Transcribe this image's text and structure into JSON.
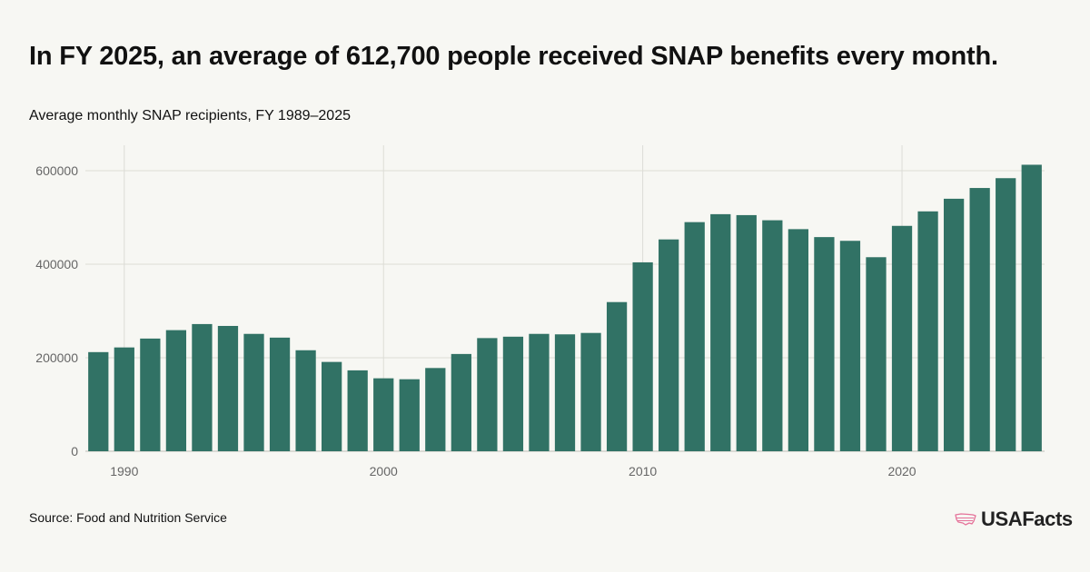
{
  "header": {
    "title": "In FY 2025, an average of 612,700 people received SNAP benefits every month.",
    "subtitle": "Average monthly SNAP recipients, FY 1989–2025"
  },
  "footer": {
    "source": "Source: Food and Nutrition Service",
    "logo_text": "USAFacts",
    "logo_icon": "us-map-icon"
  },
  "colors": {
    "bar": "#317265",
    "background": "#f7f7f3",
    "grid": "#dcdcd6",
    "axis_text": "#666666",
    "logo_accent": "#e5739a"
  },
  "chart_data": {
    "type": "bar",
    "title": "Average monthly SNAP recipients, FY 1989–2025",
    "xlabel": "",
    "ylabel": "",
    "categories": [
      1989,
      1990,
      1991,
      1992,
      1993,
      1994,
      1995,
      1996,
      1997,
      1998,
      1999,
      2000,
      2001,
      2002,
      2003,
      2004,
      2005,
      2006,
      2007,
      2008,
      2009,
      2010,
      2011,
      2012,
      2013,
      2014,
      2015,
      2016,
      2017,
      2018,
      2019,
      2020,
      2021,
      2022,
      2023,
      2024,
      2025
    ],
    "values": [
      212000,
      222000,
      241000,
      259000,
      272000,
      268000,
      251000,
      243000,
      216000,
      191000,
      173000,
      156000,
      154000,
      178000,
      208000,
      242000,
      245000,
      251000,
      250000,
      253000,
      319000,
      404000,
      453000,
      490000,
      507000,
      505000,
      494000,
      475000,
      458000,
      450000,
      415000,
      482000,
      513000,
      540000,
      563000,
      584000,
      612700
    ],
    "x_ticks": [
      "1990",
      "2000",
      "2010",
      "2020"
    ],
    "y_ticks": [
      "0",
      "200000",
      "400000",
      "600000"
    ],
    "ylim": [
      0,
      640000
    ],
    "grid": true,
    "legend": "none"
  }
}
